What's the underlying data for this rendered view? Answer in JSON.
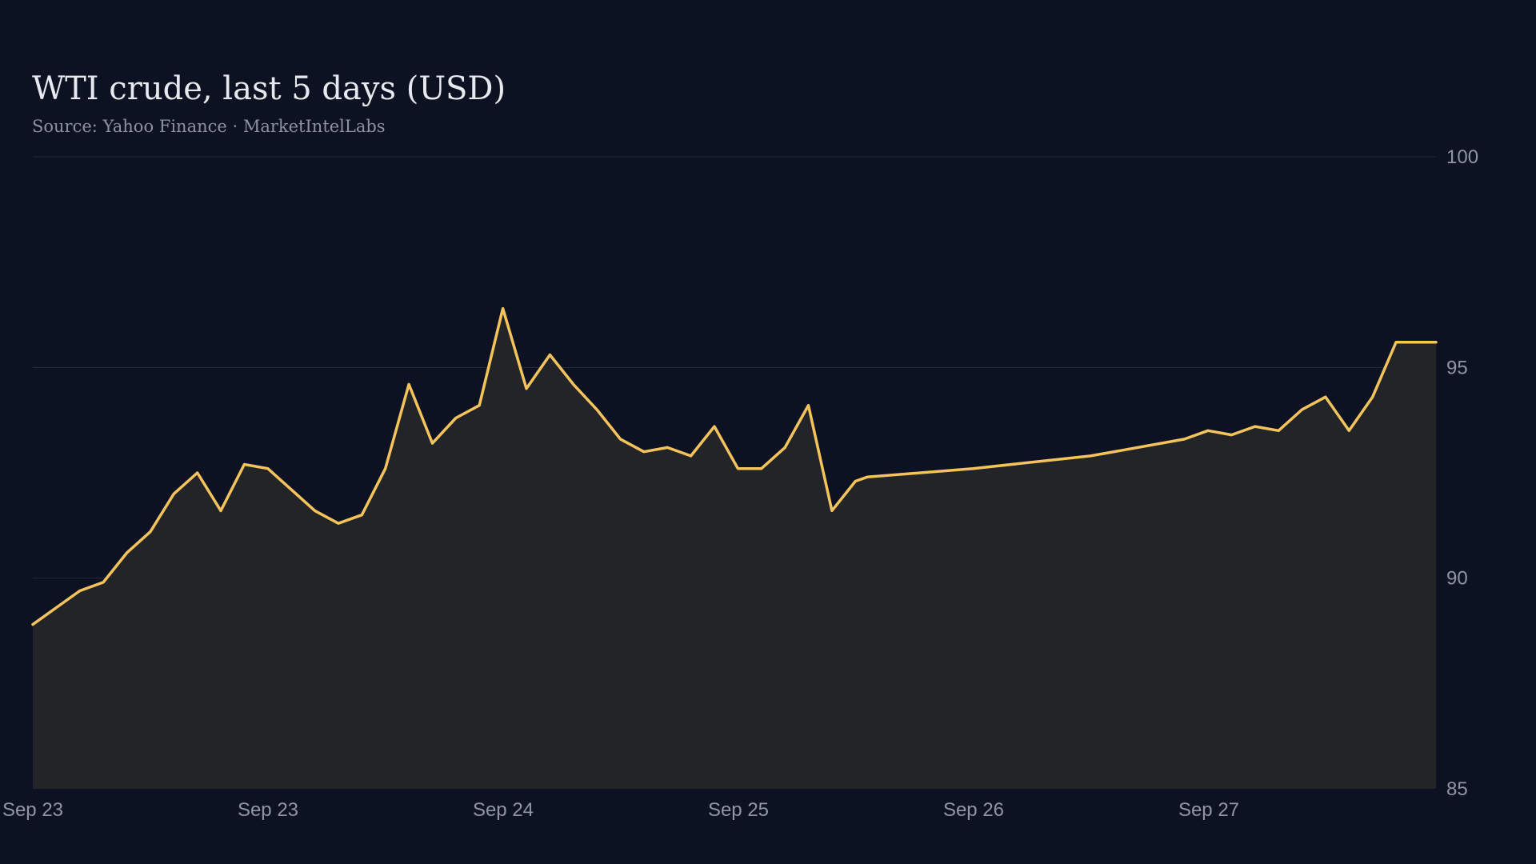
{
  "chart_data": {
    "type": "area",
    "title": "WTI crude, last 5 days (USD)",
    "subtitle": "Source: Yahoo Finance · MarketIntelLabs",
    "xlabel": "",
    "ylabel": "",
    "ylim": [
      85,
      100
    ],
    "y_ticks": [
      85,
      90,
      95,
      100
    ],
    "y_axis_position": "right",
    "grid": true,
    "legend": "none",
    "x_tick_labels": [
      "Sep 23",
      "Sep 23",
      "Sep 24",
      "Sep 25",
      "Sep 26",
      "Sep 27"
    ],
    "colors": {
      "background": "#0c1222",
      "line": "#f5c35c",
      "fill": "#222428",
      "grid": "#252b38",
      "tick_text": "#8f96a3"
    },
    "series": [
      {
        "x": [
          0.0,
          0.1,
          0.2,
          0.3,
          0.4,
          0.5,
          0.6,
          0.7,
          0.8,
          0.9,
          1.0,
          1.1,
          1.2,
          1.3,
          1.4,
          1.5,
          1.6,
          1.7,
          1.8,
          1.9,
          2.0,
          2.1,
          2.2,
          2.3,
          2.4,
          2.5,
          2.6,
          2.7,
          2.8,
          2.9,
          3.0,
          3.1,
          3.2,
          3.3,
          3.4,
          3.5,
          3.55,
          4.0,
          4.5,
          4.9,
          5.0,
          5.1,
          5.2,
          5.3,
          5.4,
          5.5,
          5.6,
          5.7,
          5.8,
          5.9,
          5.97
        ],
        "values": [
          88.9,
          89.3,
          89.7,
          89.9,
          90.6,
          91.1,
          92.0,
          92.5,
          91.6,
          92.7,
          92.6,
          92.1,
          91.6,
          91.3,
          91.5,
          92.6,
          94.6,
          93.2,
          93.8,
          94.1,
          96.4,
          94.5,
          95.3,
          94.6,
          94.0,
          93.3,
          93.0,
          93.1,
          92.9,
          93.6,
          92.6,
          92.6,
          93.1,
          94.1,
          91.6,
          92.3,
          92.4,
          92.6,
          92.9,
          93.3,
          93.5,
          93.4,
          93.6,
          93.5,
          94.0,
          94.3,
          93.5,
          94.3,
          95.6,
          95.6,
          95.6
        ]
      }
    ]
  }
}
